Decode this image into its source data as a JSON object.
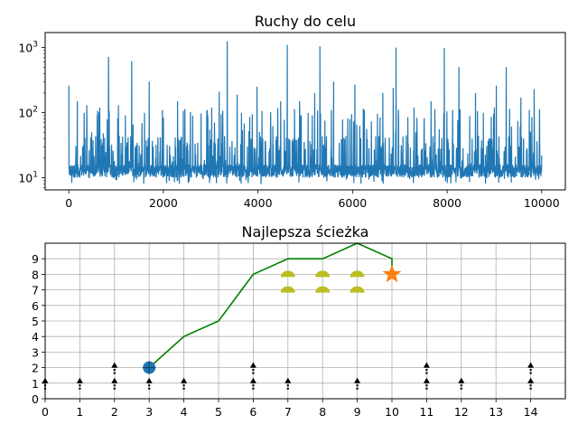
{
  "chart_data": [
    {
      "type": "line",
      "title": "Ruchy do celu",
      "xlabel": "",
      "ylabel": "",
      "yscale": "log",
      "xlim": [
        -500,
        10500
      ],
      "ylim": [
        6.5,
        1700
      ],
      "xticks": [
        0,
        2000,
        4000,
        6000,
        8000,
        10000
      ],
      "yticks": [
        {
          "base": "10",
          "exp": "1",
          "value": 10
        },
        {
          "base": "10",
          "exp": "2",
          "value": 100
        },
        {
          "base": "10",
          "exp": "3",
          "value": 1000
        }
      ],
      "grid": false,
      "series": [
        {
          "color": "#1f77b4",
          "n_points": 10000,
          "baseline": 10,
          "typical_range": [
            8,
            40
          ],
          "peaks": [
            {
              "x": 0,
              "y": 260
            },
            {
              "x": 180,
              "y": 150
            },
            {
              "x": 380,
              "y": 130
            },
            {
              "x": 600,
              "y": 90
            },
            {
              "x": 840,
              "y": 720
            },
            {
              "x": 1050,
              "y": 130
            },
            {
              "x": 1330,
              "y": 620
            },
            {
              "x": 1700,
              "y": 300
            },
            {
              "x": 1980,
              "y": 110
            },
            {
              "x": 2300,
              "y": 150
            },
            {
              "x": 2620,
              "y": 90
            },
            {
              "x": 2940,
              "y": 90
            },
            {
              "x": 3180,
              "y": 210
            },
            {
              "x": 3350,
              "y": 1250
            },
            {
              "x": 3560,
              "y": 190
            },
            {
              "x": 3980,
              "y": 250
            },
            {
              "x": 4480,
              "y": 150
            },
            {
              "x": 4620,
              "y": 1100
            },
            {
              "x": 4880,
              "y": 150
            },
            {
              "x": 5200,
              "y": 200
            },
            {
              "x": 5310,
              "y": 1050
            },
            {
              "x": 5600,
              "y": 300
            },
            {
              "x": 6050,
              "y": 270
            },
            {
              "x": 6250,
              "y": 110
            },
            {
              "x": 6640,
              "y": 200
            },
            {
              "x": 6860,
              "y": 240
            },
            {
              "x": 6920,
              "y": 1000
            },
            {
              "x": 7300,
              "y": 120
            },
            {
              "x": 7660,
              "y": 150
            },
            {
              "x": 7940,
              "y": 990
            },
            {
              "x": 8250,
              "y": 500
            },
            {
              "x": 8600,
              "y": 200
            },
            {
              "x": 9040,
              "y": 260
            },
            {
              "x": 9250,
              "y": 500
            },
            {
              "x": 9560,
              "y": 170
            },
            {
              "x": 9840,
              "y": 230
            },
            {
              "x": 10000,
              "y": 22
            }
          ]
        }
      ]
    },
    {
      "type": "scatter",
      "title": "Najlepsza ścieżka",
      "xlabel": "",
      "ylabel": "",
      "xlim": [
        0,
        15
      ],
      "ylim": [
        0,
        10
      ],
      "xticks": [
        0,
        1,
        2,
        3,
        4,
        5,
        6,
        7,
        8,
        9,
        10,
        11,
        12,
        13,
        14
      ],
      "yticks": [
        0,
        1,
        2,
        3,
        4,
        5,
        6,
        7,
        8,
        9
      ],
      "grid": true,
      "path": {
        "color": "#008000",
        "points": [
          [
            3,
            2
          ],
          [
            4,
            4
          ],
          [
            5,
            5
          ],
          [
            6,
            8
          ],
          [
            7,
            9
          ],
          [
            8,
            9
          ],
          [
            9,
            10
          ],
          [
            10,
            9
          ],
          [
            10,
            8
          ]
        ]
      },
      "start": {
        "x": 3,
        "y": 2,
        "color": "#1f77b4"
      },
      "goal": {
        "x": 10,
        "y": 8,
        "color": "#ff7f0e"
      },
      "domes": {
        "color": "#bcbd22",
        "points": [
          [
            7,
            8
          ],
          [
            8,
            8
          ],
          [
            9,
            8
          ],
          [
            7,
            7
          ],
          [
            8,
            7
          ],
          [
            9,
            7
          ]
        ]
      },
      "arrows": [
        [
          0,
          1
        ],
        [
          1,
          1
        ],
        [
          2,
          1
        ],
        [
          2,
          2
        ],
        [
          3,
          1
        ],
        [
          4,
          1
        ],
        [
          6,
          1
        ],
        [
          6,
          2
        ],
        [
          7,
          1
        ],
        [
          9,
          1
        ],
        [
          11,
          1
        ],
        [
          11,
          2
        ],
        [
          12,
          1
        ],
        [
          14,
          1
        ],
        [
          14,
          2
        ]
      ]
    }
  ]
}
